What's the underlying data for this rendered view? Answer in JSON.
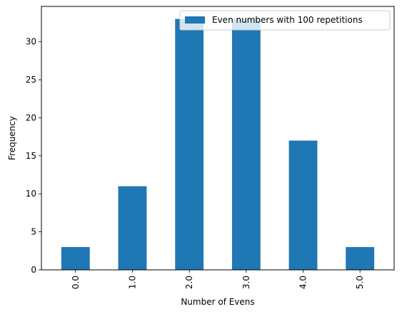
{
  "chart_data": {
    "type": "bar",
    "categories": [
      "0.0",
      "1.0",
      "2.0",
      "3.0",
      "4.0",
      "5.0"
    ],
    "series": [
      {
        "name": "Even numbers with 100 repetitions",
        "values": [
          3,
          11,
          33,
          33,
          17,
          3
        ]
      }
    ],
    "title": "",
    "xlabel": "Number of Evens",
    "ylabel": "Frequency",
    "ylim": [
      0,
      34.65
    ],
    "yticks": [
      0,
      5,
      10,
      15,
      20,
      25,
      30
    ],
    "grid": false,
    "legend_position": "upper-right",
    "x_tick_rotation": "vertical",
    "colors": {
      "bar": "#1f77b4"
    }
  }
}
